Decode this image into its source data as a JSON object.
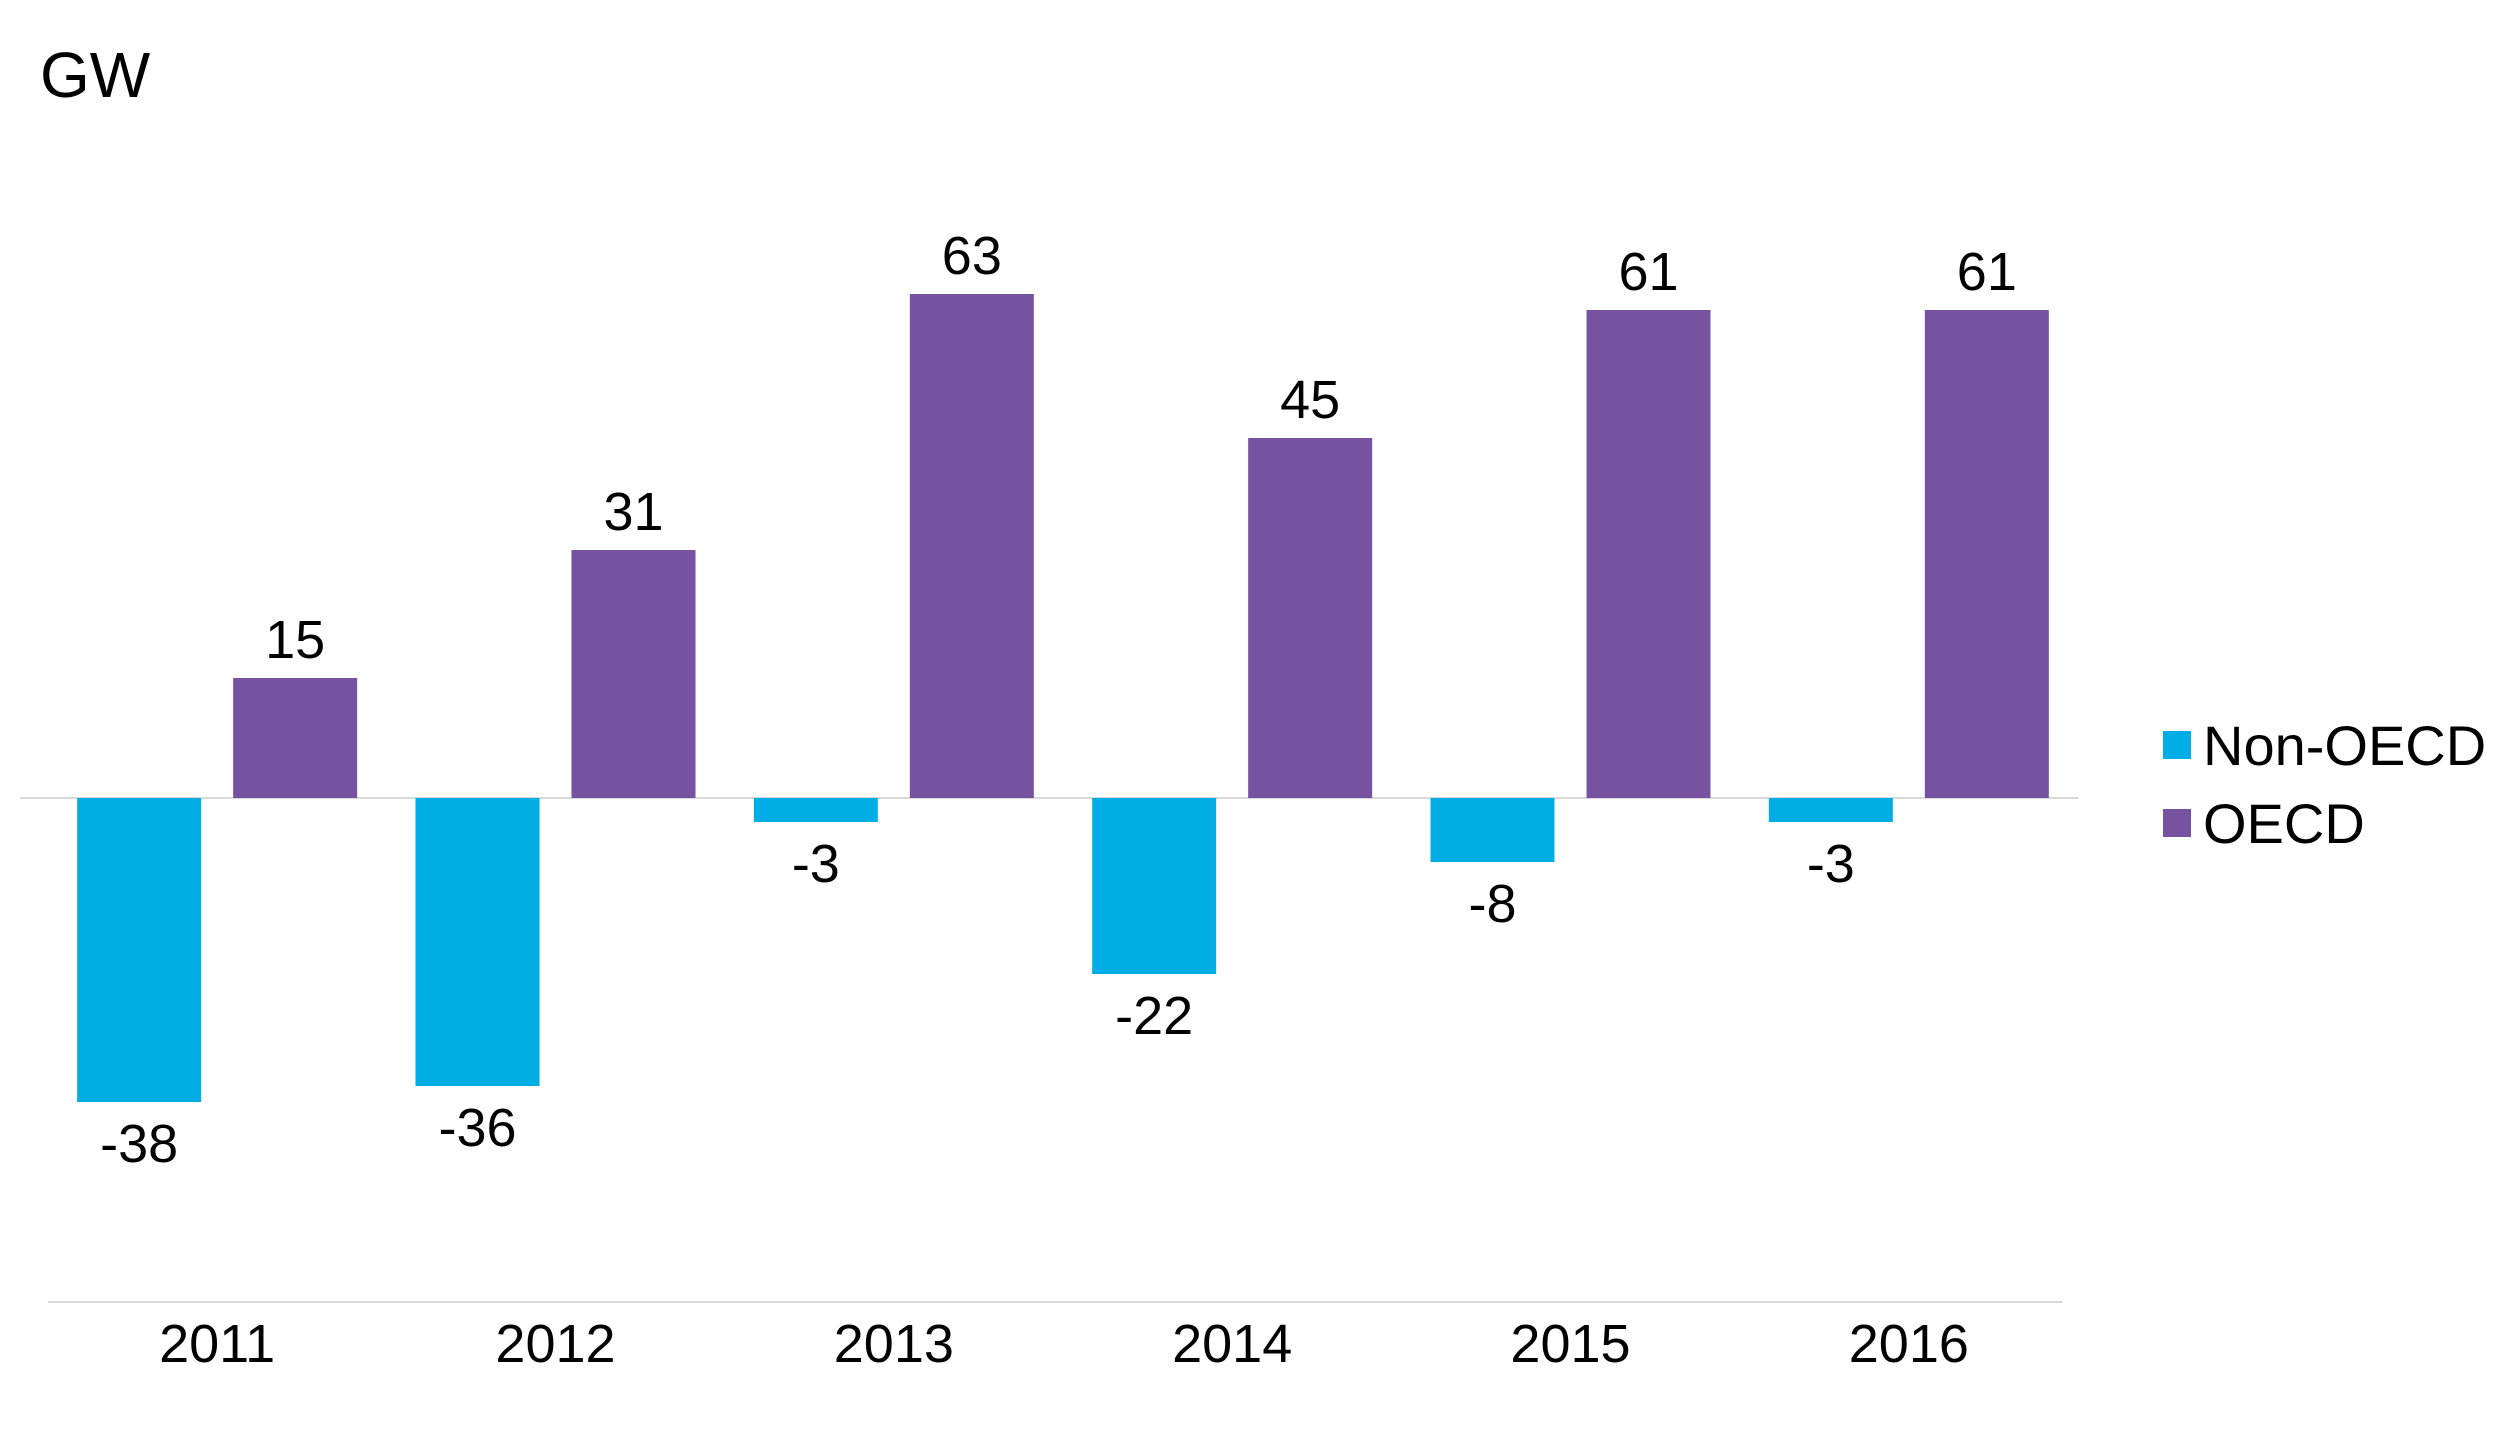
{
  "chart_data": {
    "type": "bar",
    "unit_label": "GW",
    "categories": [
      "2011",
      "2012",
      "2013",
      "2014",
      "2015",
      "2016"
    ],
    "series": [
      {
        "name": "Non-OECD",
        "color": "#00ADE4",
        "values": [
          -38,
          -36,
          -3,
          -22,
          -8,
          -3
        ]
      },
      {
        "name": "OECD",
        "color": "#7652A1",
        "values": [
          15,
          31,
          63,
          45,
          61,
          61
        ]
      }
    ],
    "data_labels": true,
    "ylim": [
      -63,
      70
    ],
    "grid": false,
    "legend_position": "right"
  }
}
